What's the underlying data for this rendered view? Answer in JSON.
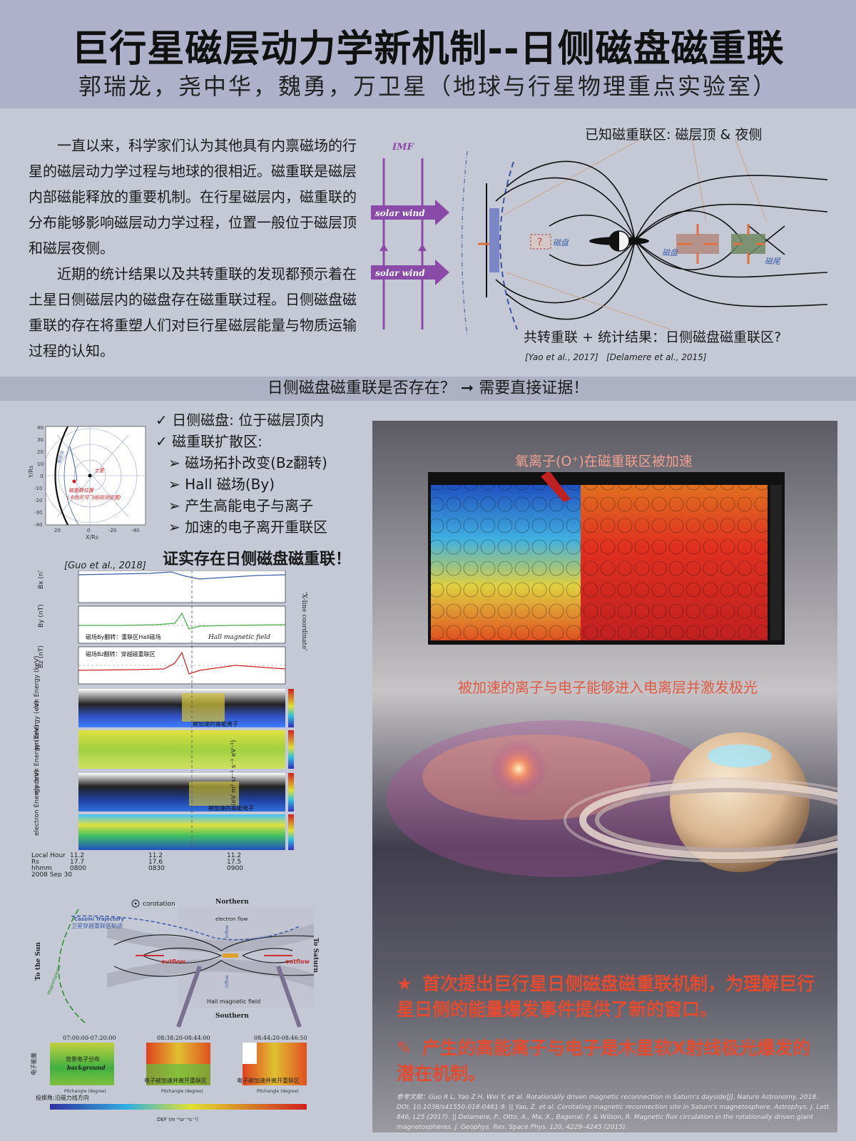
{
  "header": {
    "title": "巨行星磁层动力学新机制--日侧磁盘磁重联",
    "authors": "郭瑞龙，尧中华，魏勇，万卫星（地球与行星物理重点实验室）"
  },
  "intro": {
    "p1": "一直以来，科学家们认为其他具有内禀磁场的行星的磁层动力学过程与地球的很相近。磁重联是磁层内部磁能释放的重要机制。在行星磁层内，磁重联的分布能够影响磁层动力学过程，位置一般位于磁层顶和磁层夜侧。",
    "p2": "近期的统计结果以及共转重联的发现都预示着在土星日侧磁层内的磁盘存在磁重联过程。日侧磁盘磁重联的存在将重塑人们对巨行星磁层能量与物质运输过程的认知。"
  },
  "top_figure": {
    "known_label": "已知磁重联区: 磁层顶 & 夜侧",
    "imf": "IMF",
    "solar_wind_1": "solar wind",
    "solar_wind_2": "solar wind",
    "question": "?",
    "disk_1": "磁盘",
    "disk_2": "磁盘",
    "tail": "磁尾",
    "bottom_label": "共转重联 + 统计结果：日侧磁盘磁重联区?",
    "cite_1": "[Yao et al., 2017]",
    "cite_2": "[Delamere et al., 2015]"
  },
  "band": "日侧磁盘磁重联是否存在？ ➞ 需要直接证据！",
  "checklist": {
    "item1": "✓ 日侧磁盘: 位于磁层顶内",
    "item2": "✓ 磁重联扩散区:",
    "sub1": "➢ 磁场拓扑改变(Bz翻转)",
    "sub2": "➢ Hall 磁场(By)",
    "sub3": "➢ 产生高能电子与离子",
    "sub4": "➢ 加速的电子离开重联区",
    "conclusion": "证实存在日侧磁盘磁重联！"
  },
  "orbit_plot": {
    "ylabel": "Y/Rs",
    "xlabel": "X/Rs",
    "yticks": [
      "40",
      "30",
      "20",
      "10",
      "0",
      "-10",
      "-20",
      "-30",
      "-40"
    ],
    "xticks": [
      "20",
      "0",
      "-20",
      "-40"
    ],
    "saturn": "土星",
    "boundary": "磁层顶",
    "event": "磁重联位置",
    "event_note": "(卡西尼号飞船观测位置)",
    "cite": "[Guo et al., 2018]"
  },
  "panels": {
    "bx": "Bx (nT)",
    "by": "By (nT)",
    "bz": "Bz (nT)",
    "ion_kev": "ion Energy (keV)",
    "ion_ev": "ion Energy (eV)",
    "ele_kev": "electron Energy (keV)",
    "ele_ev": "electron Energy (eV)",
    "by_note": "磁场By翻转：重联区Hall磁场",
    "hall": "Hall magnetic field",
    "bz_note": "磁场Bz翻转：穿越磁重联区",
    "ion_note": "被加速的高能离子",
    "ele_note": "被加速的高能电子",
    "xline": "'X-line coordinate'",
    "units": "(eV m² sr⁻¹ s⁻¹ eV⁻¹)",
    "t_labels": [
      "Local Hour",
      "Rs",
      "hhmm",
      "2008 Sep 30"
    ],
    "t1": [
      "11.2",
      "17.7",
      "0800"
    ],
    "t2": [
      "11.2",
      "17.6",
      "0830"
    ],
    "t3": [
      "11.2",
      "17.5",
      "0900"
    ]
  },
  "sketch": {
    "corotation": "corotation",
    "northern": "Northern",
    "southern": "Southern",
    "trajectory": "Cassini Trajectory",
    "trajectory_cn": "卫星穿越重联区轨迹",
    "electron_flow": "electron flow",
    "outflow_l": "outflow",
    "outflow_r": "outflow",
    "inflow_t": "inflow",
    "inflow_b": "inflow",
    "to_sun": "To the Sun",
    "to_saturn": "To Saturn",
    "hall": "Hall magnetic field",
    "magnetopause": "Magnetopause"
  },
  "pad": {
    "t1": "07:00:00-07:20:00",
    "t2": "08:38:20-08:44:00",
    "t3": "08:44:20-08:46:50",
    "ylabel": "电子能量",
    "n1": "背景电子分布",
    "n1b": "background",
    "n2": "电子被加速并离开重联区",
    "n3": "电子被加速并离开重联区",
    "xlabel": "投掷角:沿磁力线方向",
    "pitch": "Pitchangle (degree)",
    "def": "DEF (m⁻²sr⁻¹s⁻¹)"
  },
  "right": {
    "oxygen": "氧离子(O⁺)在磁重联区被加速",
    "aurora": "被加速的离子与电子能够进入电离层并激发极光",
    "result1": "首次提出巨行星日侧磁盘磁重联机制，为理解巨行星日侧的能量爆发事件提供了新的窗口。",
    "result2": "产生的高能离子与电子是木星软X射线极光爆发的潜在机制。",
    "refs": "参考文献：Guo R L, Yao Z H, Wei Y, et al. Rotationally driven magnetic reconnection in Saturn's dayside[J]. Nature Astronomy, 2018. DOI: 10.1038/s41550-018-0461-9. || Yao, Z. et al. Corotating magnetic reconnection site in Saturn's magnetosphere. Astrophys. J. Lett. 846, L25 (2017). || Delamere, P., Otto, A., Ma, X., Bagenal, F. & Wilson, R. Magnetic flux circulation in the rotationally driven giant magnetospheres. J. Geophys. Res. Space Phys. 120, 4229–4245 (2015)."
  },
  "colors": {
    "accent_orange": "#e34b30",
    "purple": "#8a4aa8",
    "header_bg": "#aeb1c9"
  }
}
